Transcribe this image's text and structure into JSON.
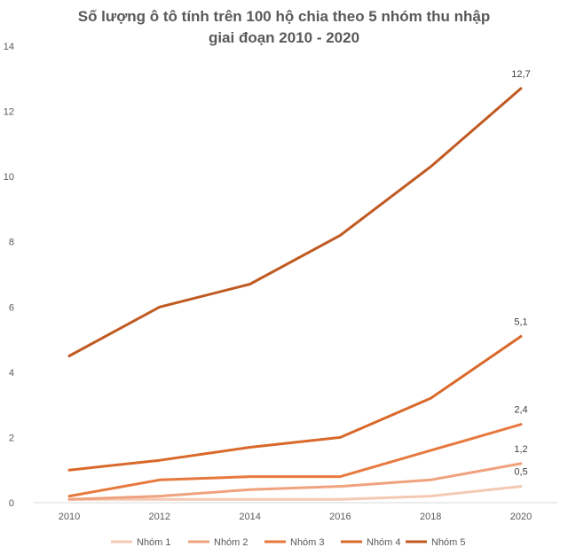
{
  "chart_data": {
    "type": "line",
    "title_lines": [
      "Số lượng ô tô tính trên 100 hộ chia theo 5 nhóm thu nhập",
      "giai đoạn 2010 - 2020"
    ],
    "xlabel": "",
    "ylabel": "",
    "x": [
      "2010",
      "2012",
      "2014",
      "2016",
      "2018",
      "2020"
    ],
    "ylim": [
      0,
      14
    ],
    "yticks": [
      0,
      2,
      4,
      6,
      8,
      10,
      12,
      14
    ],
    "grid": false,
    "legend_position": "bottom",
    "series": [
      {
        "name": "Nhóm 1",
        "color": "#F4C9B4",
        "values": [
          0.1,
          0.1,
          0.1,
          0.1,
          0.2,
          0.5
        ],
        "end_label": "0,5"
      },
      {
        "name": "Nhóm 2",
        "color": "#EFA27D",
        "values": [
          0.1,
          0.2,
          0.4,
          0.5,
          0.7,
          1.2
        ],
        "end_label": "1,2"
      },
      {
        "name": "Nhóm 3",
        "color": "#E8793E",
        "values": [
          0.2,
          0.7,
          0.8,
          0.8,
          1.6,
          2.4
        ],
        "end_label": "2,4"
      },
      {
        "name": "Nhóm 4",
        "color": "#D9692A",
        "values": [
          1.0,
          1.3,
          1.7,
          2.0,
          3.2,
          5.1
        ],
        "end_label": "5,1"
      },
      {
        "name": "Nhóm 5",
        "color": "#C05A22",
        "values": [
          4.5,
          6.0,
          6.7,
          8.2,
          10.3,
          12.7
        ],
        "end_label": "12,7"
      }
    ]
  }
}
